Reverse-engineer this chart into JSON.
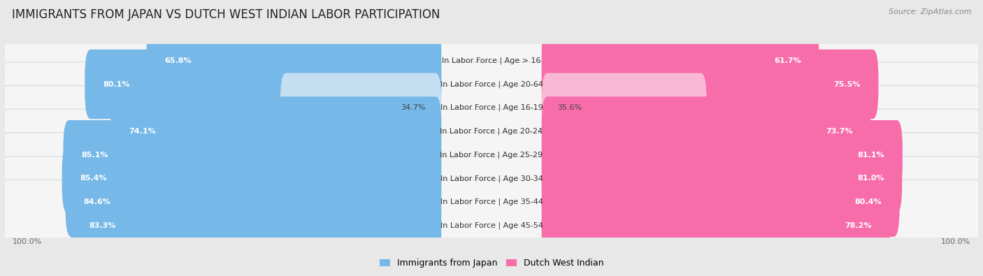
{
  "title": "IMMIGRANTS FROM JAPAN VS DUTCH WEST INDIAN LABOR PARTICIPATION",
  "source": "Source: ZipAtlas.com",
  "categories": [
    "In Labor Force | Age > 16",
    "In Labor Force | Age 20-64",
    "In Labor Force | Age 16-19",
    "In Labor Force | Age 20-24",
    "In Labor Force | Age 25-29",
    "In Labor Force | Age 30-34",
    "In Labor Force | Age 35-44",
    "In Labor Force | Age 45-54"
  ],
  "japan_values": [
    65.8,
    80.1,
    34.7,
    74.1,
    85.1,
    85.4,
    84.6,
    83.3
  ],
  "dutch_values": [
    61.7,
    75.5,
    35.6,
    73.7,
    81.1,
    81.0,
    80.4,
    78.2
  ],
  "japan_color": "#76b8e8",
  "japan_light_color": "#c5dff2",
  "dutch_color": "#f76daa",
  "dutch_light_color": "#f9b8d4",
  "background_color": "#e8e8e8",
  "row_bg_color": "#f5f5f5",
  "row_border_color": "#d8d8d8",
  "title_fontsize": 12,
  "label_fontsize": 8,
  "value_fontsize": 8,
  "legend_fontsize": 9,
  "source_fontsize": 8,
  "low_threshold": 50
}
